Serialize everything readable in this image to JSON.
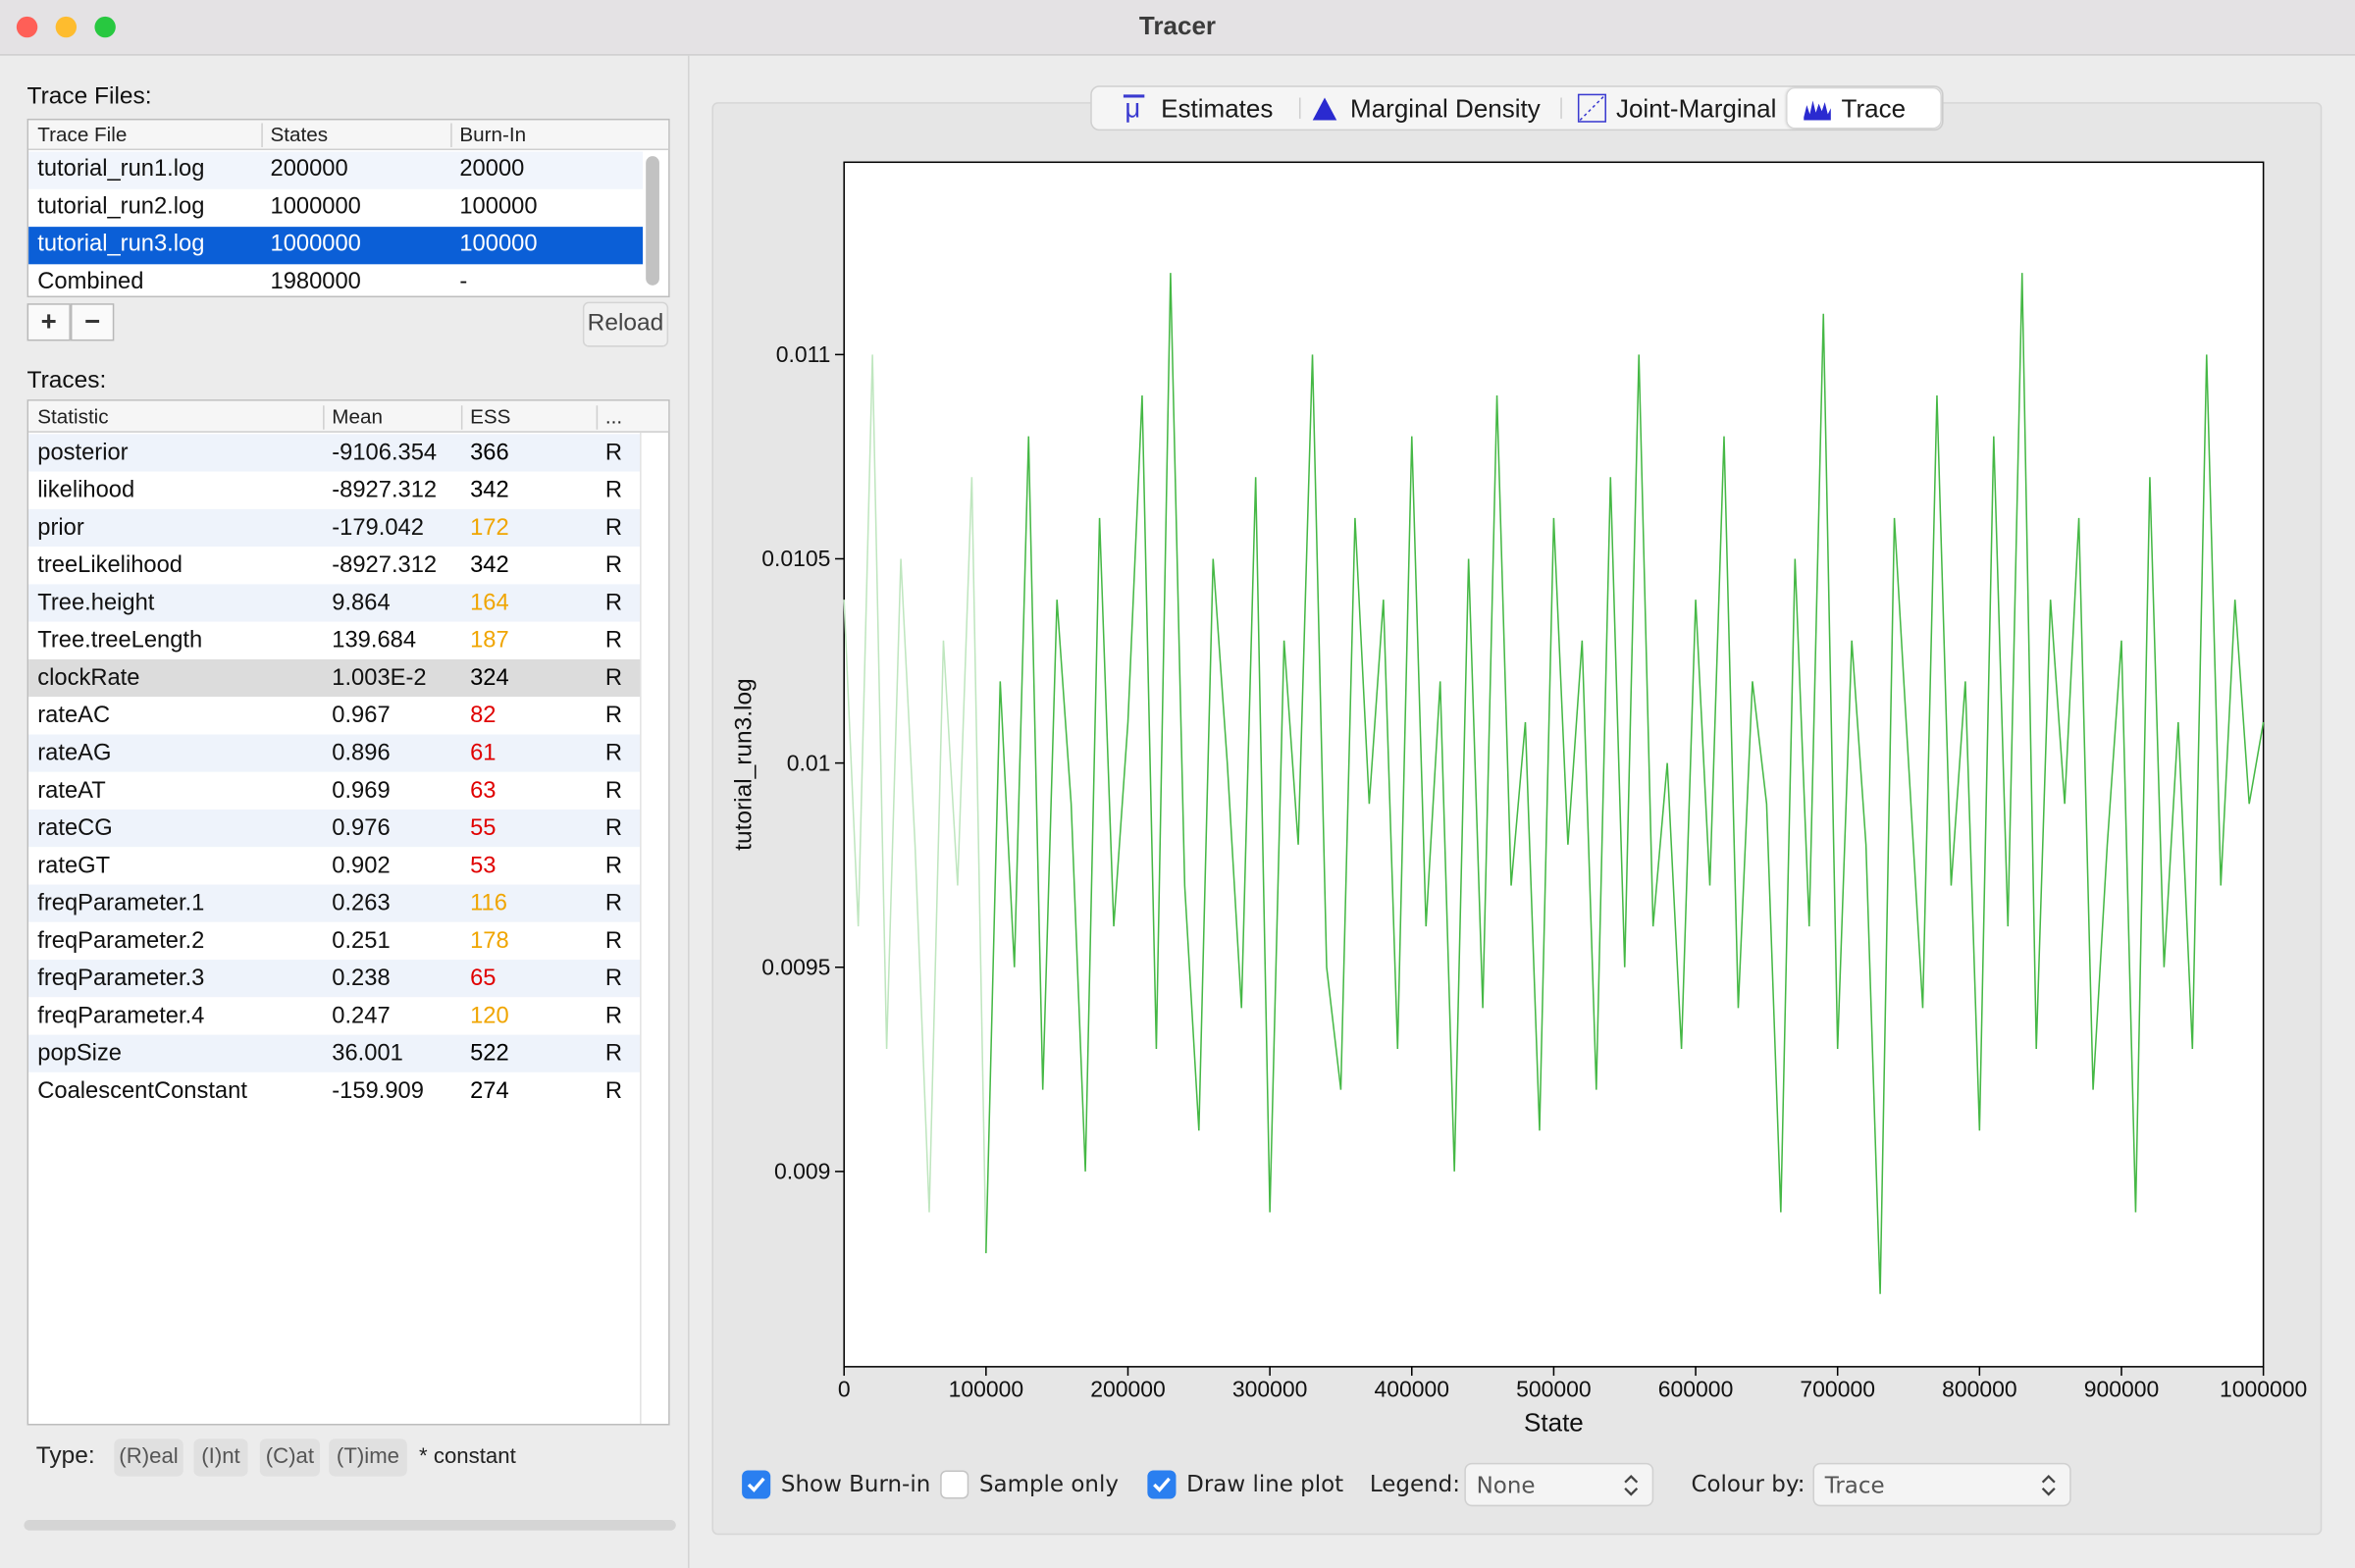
{
  "window_title": "Tracer",
  "trace_files": {
    "label": "Trace Files:",
    "columns": [
      "Trace File",
      "States",
      "Burn-In"
    ],
    "rows": [
      [
        "tutorial_run1.log",
        "200000",
        "20000"
      ],
      [
        "tutorial_run2.log",
        "1000000",
        "100000"
      ],
      [
        "tutorial_run3.log",
        "1000000",
        "100000"
      ],
      [
        "Combined",
        "1980000",
        "-"
      ]
    ],
    "selected": 2,
    "add": "+",
    "remove": "−",
    "reload": "Reload"
  },
  "traces": {
    "label": "Traces:",
    "columns": [
      "Statistic",
      "Mean",
      "ESS",
      "..."
    ],
    "rows": [
      {
        "statistic": "posterior",
        "mean": "-9106.354",
        "ess": "366",
        "ess_color": "#000000",
        "type": "R"
      },
      {
        "statistic": "likelihood",
        "mean": "-8927.312",
        "ess": "342",
        "ess_color": "#000000",
        "type": "R"
      },
      {
        "statistic": "prior",
        "mean": "-179.042",
        "ess": "172",
        "ess_color": "#f0a500",
        "type": "R"
      },
      {
        "statistic": "treeLikelihood",
        "mean": "-8927.312",
        "ess": "342",
        "ess_color": "#000000",
        "type": "R"
      },
      {
        "statistic": "Tree.height",
        "mean": "9.864",
        "ess": "164",
        "ess_color": "#f0a500",
        "type": "R"
      },
      {
        "statistic": "Tree.treeLength",
        "mean": "139.684",
        "ess": "187",
        "ess_color": "#f0a500",
        "type": "R"
      },
      {
        "statistic": "clockRate",
        "mean": "1.003E-2",
        "ess": "324",
        "ess_color": "#000000",
        "type": "R"
      },
      {
        "statistic": "rateAC",
        "mean": "0.967",
        "ess": "82",
        "ess_color": "#e00000",
        "type": "R"
      },
      {
        "statistic": "rateAG",
        "mean": "0.896",
        "ess": "61",
        "ess_color": "#e00000",
        "type": "R"
      },
      {
        "statistic": "rateAT",
        "mean": "0.969",
        "ess": "63",
        "ess_color": "#e00000",
        "type": "R"
      },
      {
        "statistic": "rateCG",
        "mean": "0.976",
        "ess": "55",
        "ess_color": "#e00000",
        "type": "R"
      },
      {
        "statistic": "rateGT",
        "mean": "0.902",
        "ess": "53",
        "ess_color": "#e00000",
        "type": "R"
      },
      {
        "statistic": "freqParameter.1",
        "mean": "0.263",
        "ess": "116",
        "ess_color": "#f0a500",
        "type": "R"
      },
      {
        "statistic": "freqParameter.2",
        "mean": "0.251",
        "ess": "178",
        "ess_color": "#f0a500",
        "type": "R"
      },
      {
        "statistic": "freqParameter.3",
        "mean": "0.238",
        "ess": "65",
        "ess_color": "#e00000",
        "type": "R"
      },
      {
        "statistic": "freqParameter.4",
        "mean": "0.247",
        "ess": "120",
        "ess_color": "#f0a500",
        "type": "R"
      },
      {
        "statistic": "popSize",
        "mean": "36.001",
        "ess": "522",
        "ess_color": "#000000",
        "type": "R"
      },
      {
        "statistic": "CoalescentConstant",
        "mean": "-159.909",
        "ess": "274",
        "ess_color": "#000000",
        "type": "R"
      }
    ],
    "highlighted": 6
  },
  "type_legend": {
    "label": "Type:",
    "items": [
      "(R)eal",
      "(I)nt",
      "(C)at",
      "(T)ime"
    ],
    "note": "* constant"
  },
  "tabs": {
    "items": [
      "Estimates",
      "Marginal Density",
      "Joint-Marginal",
      "Trace"
    ],
    "selected": 3
  },
  "chart_data": {
    "type": "line",
    "xlabel": "State",
    "ylabel": "tutorial_run3.log",
    "x": [
      0,
      10000,
      20000,
      30000,
      40000,
      50000,
      60000,
      70000,
      80000,
      90000,
      100000,
      110000,
      120000,
      130000,
      140000,
      150000,
      160000,
      170000,
      180000,
      190000,
      200000,
      210000,
      220000,
      230000,
      240000,
      250000,
      260000,
      270000,
      280000,
      290000,
      300000,
      310000,
      320000,
      330000,
      340000,
      350000,
      360000,
      370000,
      380000,
      390000,
      400000,
      410000,
      420000,
      430000,
      440000,
      450000,
      460000,
      470000,
      480000,
      490000,
      500000,
      510000,
      520000,
      530000,
      540000,
      550000,
      560000,
      570000,
      580000,
      590000,
      600000,
      610000,
      620000,
      630000,
      640000,
      650000,
      660000,
      670000,
      680000,
      690000,
      700000,
      710000,
      720000,
      730000,
      740000,
      750000,
      760000,
      770000,
      780000,
      790000,
      800000,
      810000,
      820000,
      830000,
      840000,
      850000,
      860000,
      870000,
      880000,
      890000,
      900000,
      910000,
      920000,
      930000,
      940000,
      950000,
      960000,
      970000,
      980000,
      990000,
      1000000
    ],
    "series": [
      {
        "color": "#45b845",
        "values": [
          0.0104,
          0.0096,
          0.011,
          0.0093,
          0.0105,
          0.0098,
          0.0089,
          0.0103,
          0.0097,
          0.0107,
          0.0088,
          0.0102,
          0.0095,
          0.0108,
          0.0092,
          0.0104,
          0.0099,
          0.009,
          0.0106,
          0.0096,
          0.0101,
          0.0109,
          0.0093,
          0.0112,
          0.0097,
          0.0091,
          0.0105,
          0.01,
          0.0094,
          0.0107,
          0.0089,
          0.0103,
          0.0098,
          0.011,
          0.0095,
          0.0092,
          0.0106,
          0.0099,
          0.0104,
          0.0093,
          0.0108,
          0.0096,
          0.0102,
          0.009,
          0.0105,
          0.0094,
          0.0109,
          0.0097,
          0.0101,
          0.0091,
          0.0106,
          0.0098,
          0.0103,
          0.0092,
          0.0107,
          0.0095,
          0.011,
          0.0096,
          0.01,
          0.0093,
          0.0104,
          0.0097,
          0.0108,
          0.0094,
          0.0102,
          0.0099,
          0.0089,
          0.0105,
          0.0096,
          0.0111,
          0.0093,
          0.0103,
          0.0098,
          0.0087,
          0.0106,
          0.01,
          0.0094,
          0.0109,
          0.0097,
          0.0102,
          0.0091,
          0.0108,
          0.0096,
          0.0112,
          0.0093,
          0.0104,
          0.0099,
          0.0106,
          0.0092,
          0.0098,
          0.0103,
          0.0089,
          0.0107,
          0.0095,
          0.0101,
          0.0093,
          0.011,
          0.0097,
          0.0104,
          0.0099,
          0.0101
        ]
      }
    ],
    "burn_in": 100000,
    "burn_in_color": "#bfe6bf",
    "xlim": [
      0,
      1000000
    ],
    "ylim": [
      0.008522,
      0.011471
    ],
    "xticks": [
      0,
      100000,
      200000,
      300000,
      400000,
      500000,
      600000,
      700000,
      800000,
      900000,
      1000000
    ],
    "yticks": [
      0.009,
      0.0095,
      0.01,
      0.0105,
      0.011
    ]
  },
  "controls": {
    "show_burn_in": {
      "label": "Show Burn-in",
      "checked": true
    },
    "sample_only": {
      "label": "Sample only",
      "checked": false
    },
    "draw_line_plot": {
      "label": "Draw line plot",
      "checked": true
    },
    "legend": {
      "label": "Legend:",
      "value": "None"
    },
    "colour_by": {
      "label": "Colour by:",
      "value": "Trace"
    }
  }
}
